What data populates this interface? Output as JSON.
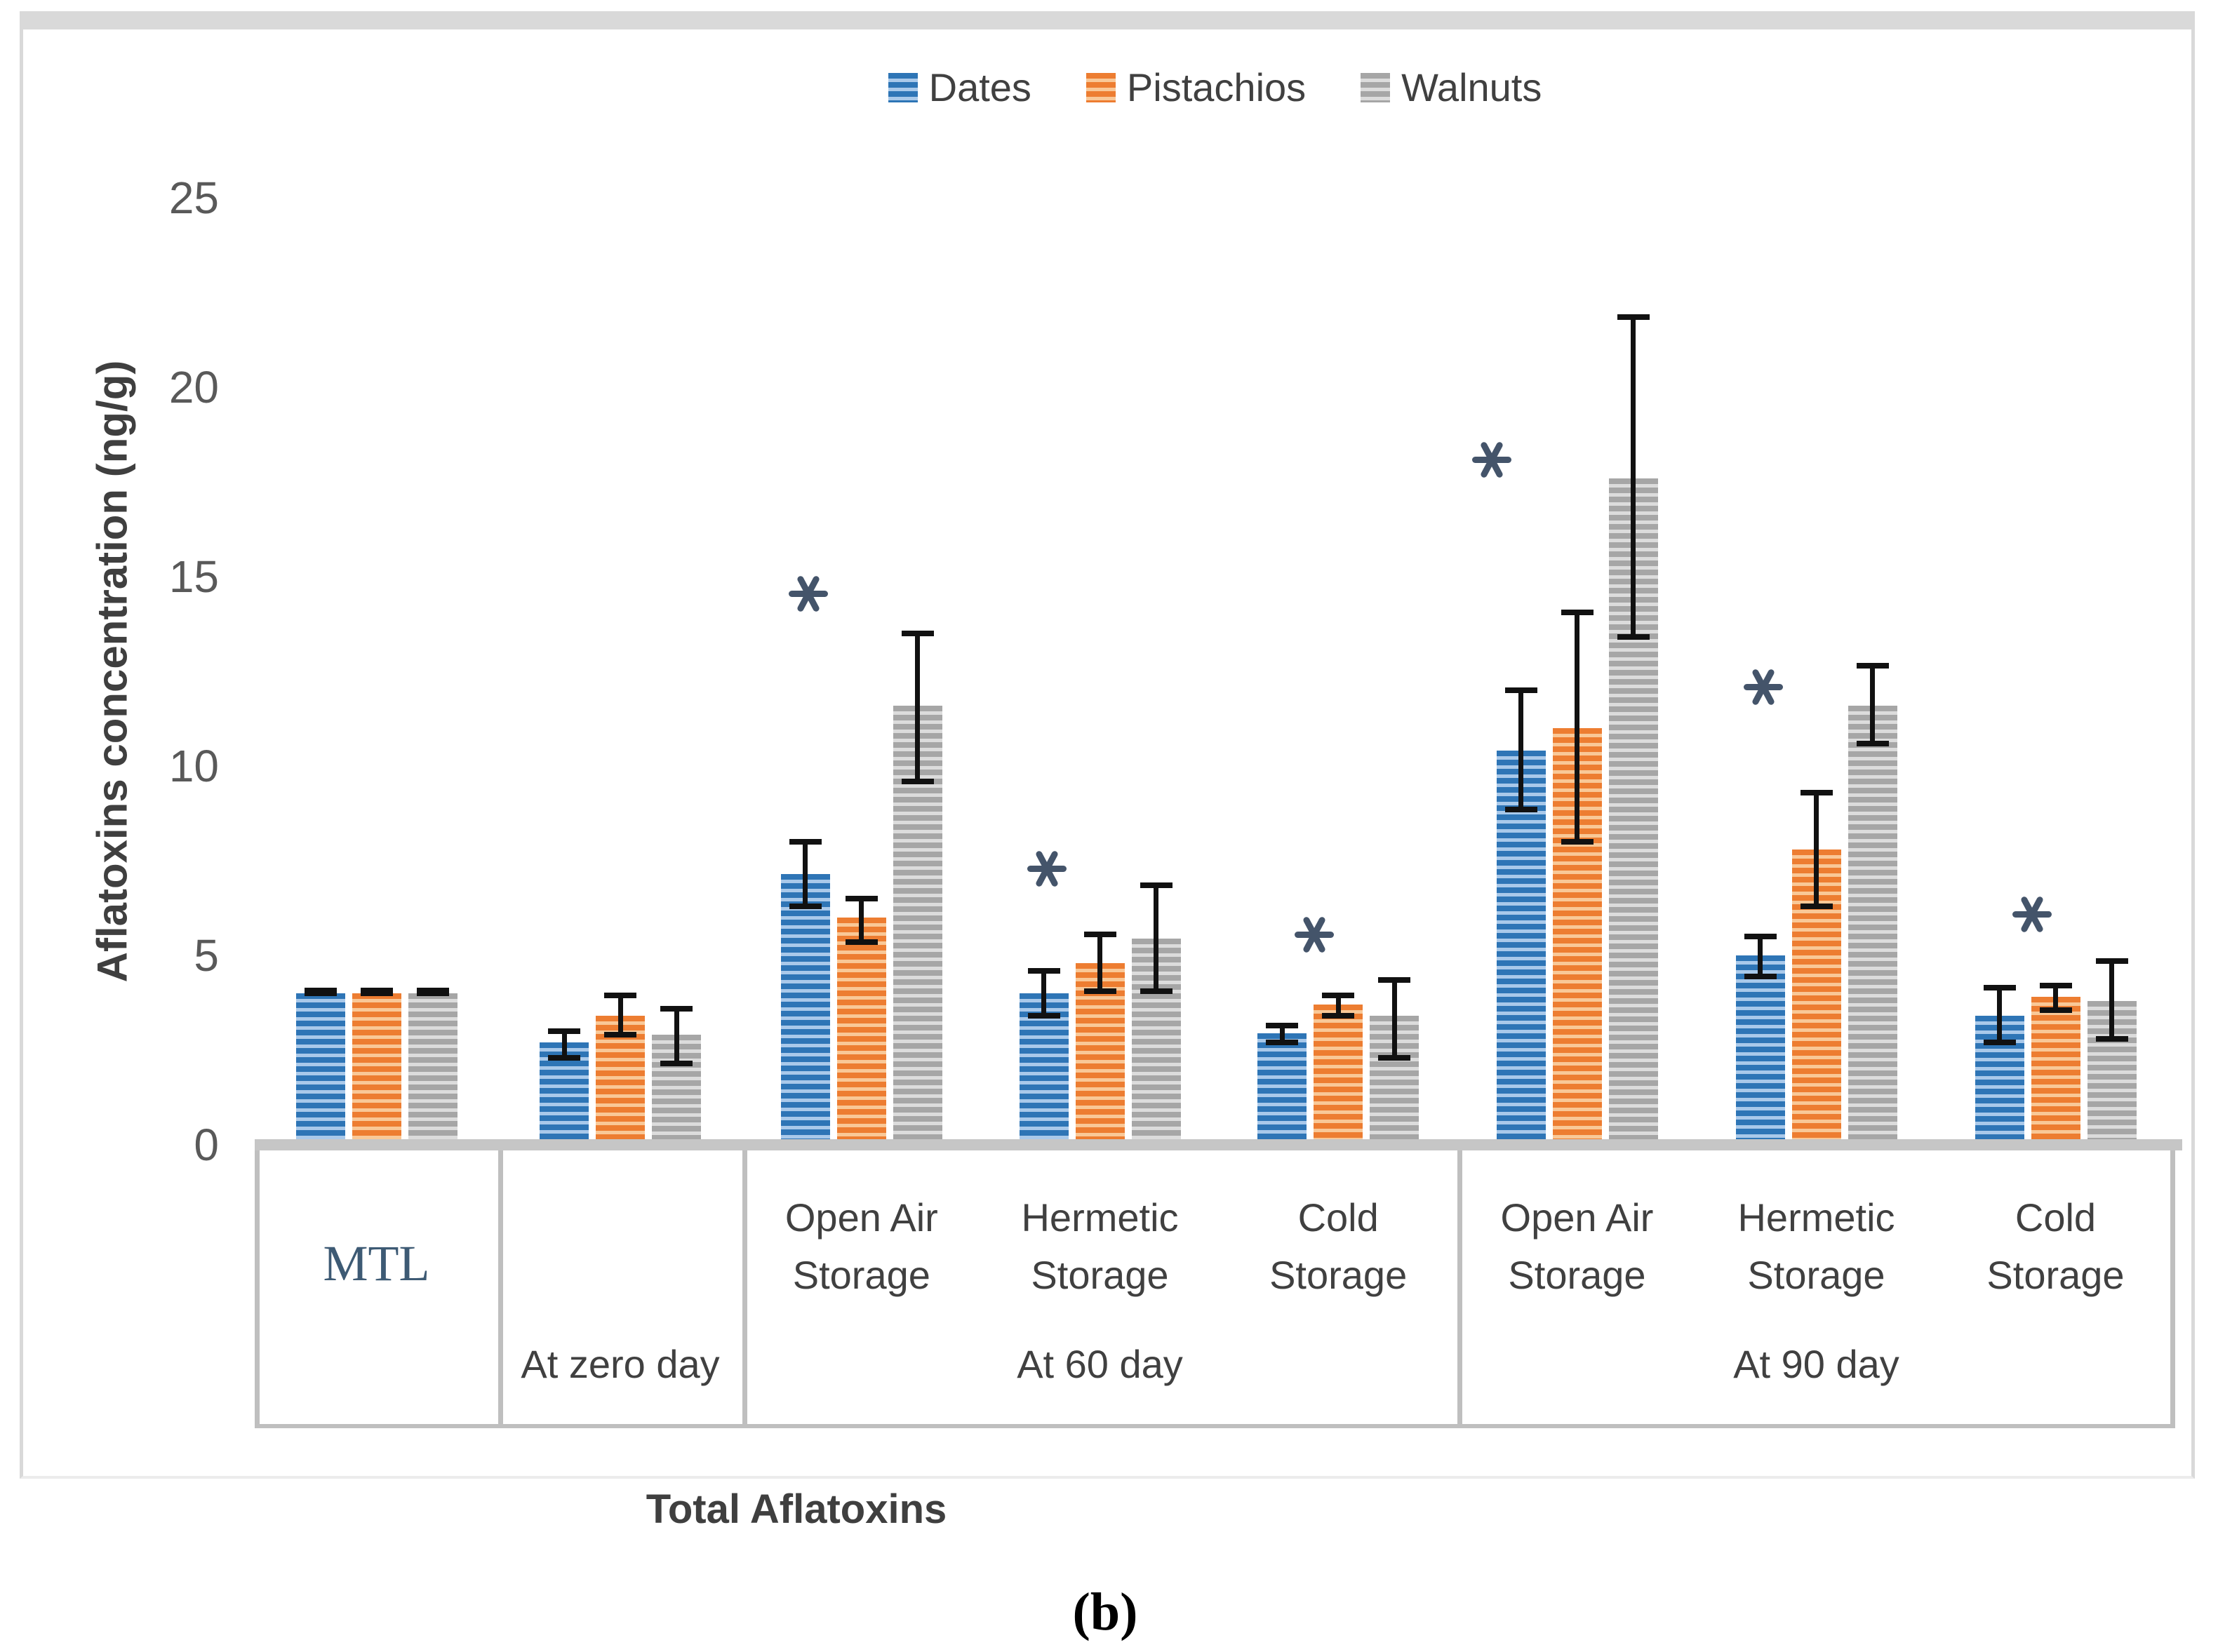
{
  "caption": "(b)",
  "colors": {
    "frame": "#D9D9D9",
    "baseline": "#C6C6C6",
    "table_line": "#BFBFBF",
    "error_bar": "#111111",
    "star": "#44546A",
    "mtl_text": "#3D5A74",
    "axis_text": "#595959",
    "label_text": "#404040"
  },
  "chart_data": {
    "type": "bar",
    "title": "",
    "ylabel": "Aflatoxins concentration (ng/g)",
    "xlabel": "Total Aflatoxins",
    "ylim": [
      0,
      25
    ],
    "yticks": [
      0,
      5,
      10,
      15,
      20,
      25
    ],
    "grid": false,
    "legend_position": "top",
    "bar_pattern": "horizontal-stripes",
    "series": [
      {
        "name": "Dates",
        "color": "#2E75B6",
        "stripe": "#A9C9EA"
      },
      {
        "name": "Pistachios",
        "color": "#ED7D31",
        "stripe": "#F9C897"
      },
      {
        "name": "Walnuts",
        "color": "#A6A6A6",
        "stripe": "#DCDCDC"
      }
    ],
    "star_note": "* = significance marker shown above cluster",
    "sections": [
      {
        "period_label": "",
        "groups": [
          {
            "label_lines": [
              "MTL"
            ],
            "label_style": "mtl",
            "values": [
              4.0,
              4.0,
              4.0
            ],
            "errors": [
              [
                4.0,
                4.08
              ],
              [
                4.0,
                4.08
              ],
              [
                4.0,
                4.08
              ]
            ],
            "star": null
          }
        ]
      },
      {
        "period_label": "At zero day",
        "groups": [
          {
            "label_lines": [],
            "values": [
              2.7,
              3.4,
              2.9
            ],
            "errors": [
              [
                2.3,
                3.0
              ],
              [
                2.9,
                3.95
              ],
              [
                2.15,
                3.6
              ]
            ],
            "star": null
          }
        ]
      },
      {
        "period_label": "At 60 day",
        "groups": [
          {
            "label_lines": [
              "Open Air",
              "Storage"
            ],
            "values": [
              7.15,
              6.0,
              11.6
            ],
            "errors": [
              [
                6.3,
                8.0
              ],
              [
                5.35,
                6.5
              ],
              [
                9.6,
                13.5
              ]
            ],
            "star": {
              "value": 14.55,
              "over": "dates-pistachios"
            }
          },
          {
            "label_lines": [
              "Hermetic",
              "Storage"
            ],
            "values": [
              4.0,
              4.8,
              5.45
            ],
            "errors": [
              [
                3.4,
                4.6
              ],
              [
                4.05,
                5.55
              ],
              [
                4.05,
                6.85
              ]
            ],
            "star": {
              "value": 7.3,
              "over": "dates-pistachios"
            }
          },
          {
            "label_lines": [
              "Cold",
              "Storage"
            ],
            "values": [
              2.95,
              3.7,
              3.4
            ],
            "errors": [
              [
                2.7,
                3.15
              ],
              [
                3.4,
                3.95
              ],
              [
                2.3,
                4.35
              ]
            ],
            "star": {
              "value": 5.55,
              "over": "pistachios"
            }
          }
        ]
      },
      {
        "period_label": "At 90 day",
        "groups": [
          {
            "label_lines": [
              "Open Air",
              "Storage"
            ],
            "values": [
              10.4,
              11.0,
              17.6
            ],
            "errors": [
              [
                8.85,
                12.0
              ],
              [
                8.0,
                14.05
              ],
              [
                13.4,
                21.85
              ]
            ],
            "star": {
              "value": 18.1,
              "over": "dates"
            }
          },
          {
            "label_lines": [
              "Hermetic",
              "Storage"
            ],
            "values": [
              5.0,
              7.8,
              11.6
            ],
            "errors": [
              [
                4.45,
                5.5
              ],
              [
                6.3,
                9.3
              ],
              [
                10.6,
                12.65
              ]
            ],
            "star": {
              "value": 12.1,
              "over": "dates-pistachios"
            }
          },
          {
            "label_lines": [
              "Cold",
              "Storage"
            ],
            "values": [
              3.4,
              3.9,
              3.8
            ],
            "errors": [
              [
                2.7,
                4.15
              ],
              [
                3.55,
                4.2
              ],
              [
                2.8,
                4.85
              ]
            ],
            "star": {
              "value": 6.1,
              "over": "pistachios"
            }
          }
        ]
      }
    ]
  }
}
